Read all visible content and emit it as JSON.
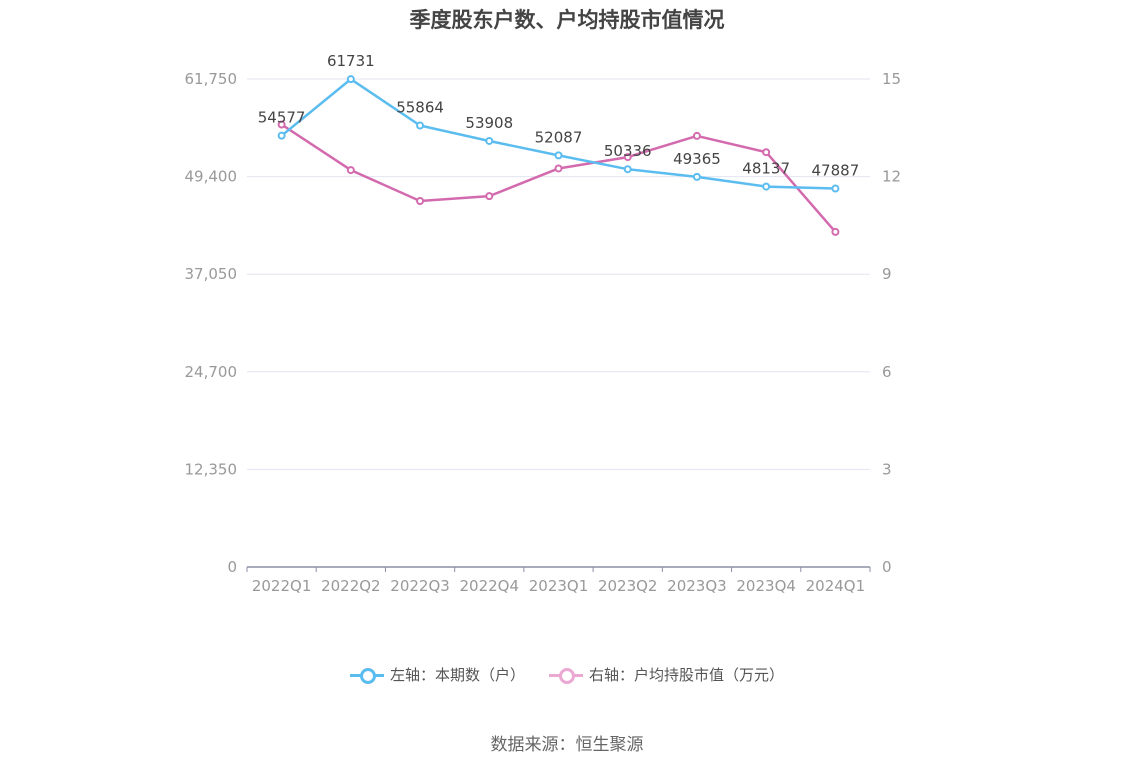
{
  "title": "季度股东户数、户均持股市值情况",
  "source": "数据来源：恒生聚源",
  "legend": {
    "left_label": "左轴：本期数（户）",
    "right_label": "右轴：户均持股市值（万元）"
  },
  "colors": {
    "left_series": "#5bbcf0",
    "right_series": "#d46aae",
    "right_legend": "#eaa8d2",
    "grid": "#e3e6f2",
    "axis": "#8c90a4",
    "tick_text": "#999999",
    "label_text": "#444444"
  },
  "chart_data": {
    "type": "line",
    "categories": [
      "2022Q1",
      "2022Q2",
      "2022Q3",
      "2022Q4",
      "2023Q1",
      "2023Q2",
      "2023Q3",
      "2023Q4",
      "2024Q1"
    ],
    "y_left": {
      "ticks": [
        0,
        12350,
        24700,
        37050,
        49400,
        61750
      ],
      "tick_labels": [
        "0",
        "12,350",
        "24,700",
        "37,050",
        "49,400",
        "61,750"
      ],
      "range": [
        0,
        61750
      ]
    },
    "y_right": {
      "ticks": [
        0,
        3,
        6,
        9,
        12,
        15
      ],
      "tick_labels": [
        "0",
        "3",
        "6",
        "9",
        "12",
        "15"
      ],
      "range": [
        0,
        15
      ]
    },
    "series": [
      {
        "name": "左轴：本期数（户）",
        "axis": "left",
        "values": [
          54577,
          61731,
          55864,
          53908,
          52087,
          50336,
          49365,
          48137,
          47887
        ],
        "labels": [
          "54577",
          "61731",
          "55864",
          "53908",
          "52087",
          "50336",
          "49365",
          "48137",
          "47887"
        ]
      },
      {
        "name": "右轴：户均持股市值（万元）",
        "axis": "right",
        "values": [
          13.6,
          12.2,
          11.25,
          11.4,
          12.25,
          12.6,
          13.25,
          12.75,
          10.3
        ]
      }
    ],
    "grid": true,
    "legend_position": "bottom"
  }
}
